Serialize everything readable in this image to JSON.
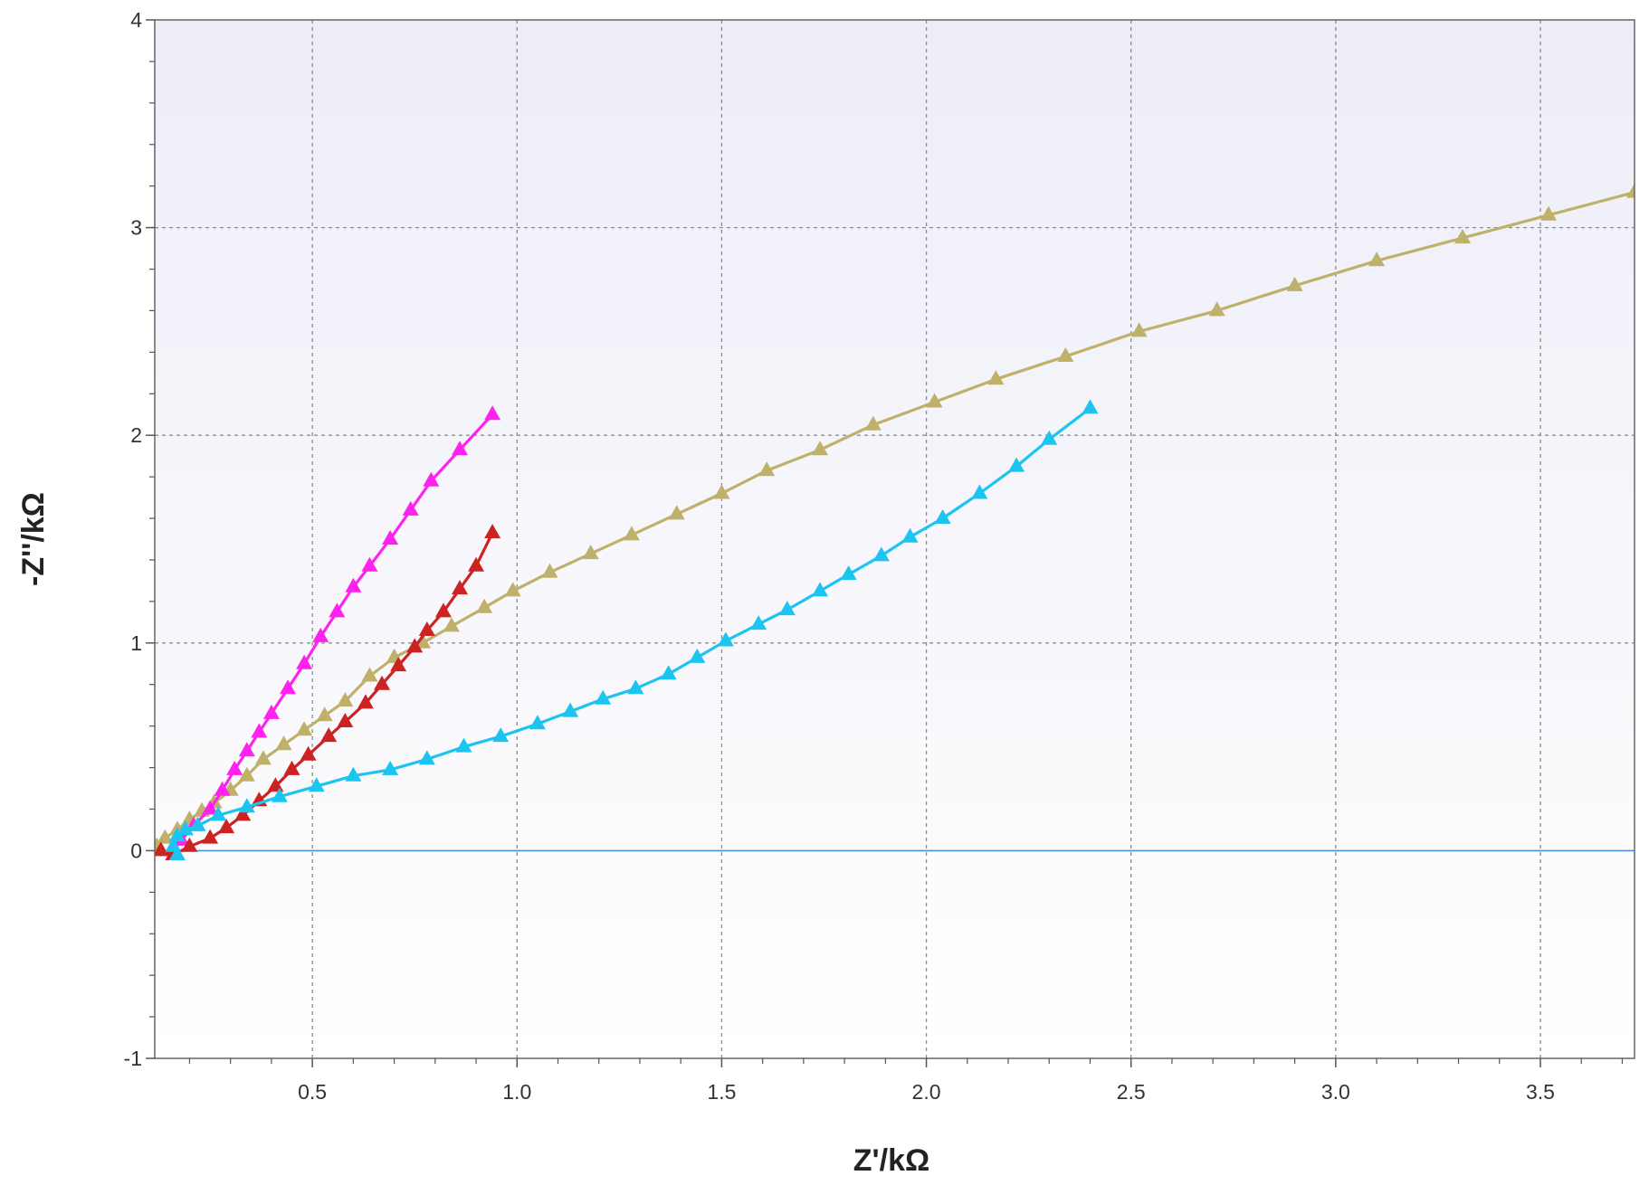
{
  "chart_data": {
    "type": "scatter",
    "title": "",
    "xlabel": "Z'/kΩ",
    "ylabel": "-Z''/kΩ",
    "xlim": [
      0.115,
      3.73
    ],
    "ylim": [
      -1,
      4
    ],
    "x_ticks": [
      "0.5",
      "1.0",
      "1.5",
      "2.0",
      "2.5",
      "3.0",
      "3.5"
    ],
    "y_ticks": [
      "-1",
      "0",
      "1",
      "2",
      "3",
      "4"
    ],
    "x_tick_values": [
      0.5,
      1.0,
      1.5,
      2.0,
      2.5,
      3.0,
      3.5
    ],
    "y_tick_values": [
      -1,
      0,
      1,
      2,
      3,
      4
    ],
    "grid": true,
    "zero_line": true,
    "marker": "triangle",
    "colors": {
      "plot_background_top": "#ededf8",
      "plot_background_bottom": "#ffffff",
      "grid": "#8c8c8c",
      "zero_line": "#4a90d9",
      "axis": "#555555"
    },
    "series": [
      {
        "color": "#bfb06a",
        "points": [
          [
            0.12,
            0.02
          ],
          [
            0.14,
            0.06
          ],
          [
            0.17,
            0.1
          ],
          [
            0.2,
            0.15
          ],
          [
            0.23,
            0.19
          ],
          [
            0.26,
            0.23
          ],
          [
            0.3,
            0.29
          ],
          [
            0.34,
            0.36
          ],
          [
            0.38,
            0.44
          ],
          [
            0.43,
            0.51
          ],
          [
            0.48,
            0.58
          ],
          [
            0.53,
            0.65
          ],
          [
            0.58,
            0.72
          ],
          [
            0.64,
            0.84
          ],
          [
            0.7,
            0.93
          ],
          [
            0.77,
            1.0
          ],
          [
            0.84,
            1.08
          ],
          [
            0.92,
            1.17
          ],
          [
            0.99,
            1.25
          ],
          [
            1.08,
            1.34
          ],
          [
            1.18,
            1.43
          ],
          [
            1.28,
            1.52
          ],
          [
            1.39,
            1.62
          ],
          [
            1.5,
            1.72
          ],
          [
            1.61,
            1.83
          ],
          [
            1.74,
            1.93
          ],
          [
            1.87,
            2.05
          ],
          [
            2.02,
            2.16
          ],
          [
            2.17,
            2.27
          ],
          [
            2.34,
            2.38
          ],
          [
            2.52,
            2.5
          ],
          [
            2.71,
            2.6
          ],
          [
            2.9,
            2.72
          ],
          [
            3.1,
            2.84
          ],
          [
            3.31,
            2.95
          ],
          [
            3.52,
            3.06
          ],
          [
            3.73,
            3.17
          ]
        ]
      },
      {
        "color": "#ff22ee",
        "points": [
          [
            0.16,
            0.0
          ],
          [
            0.18,
            0.05
          ],
          [
            0.21,
            0.12
          ],
          [
            0.25,
            0.2
          ],
          [
            0.28,
            0.29
          ],
          [
            0.31,
            0.39
          ],
          [
            0.34,
            0.48
          ],
          [
            0.37,
            0.57
          ],
          [
            0.4,
            0.66
          ],
          [
            0.44,
            0.78
          ],
          [
            0.48,
            0.9
          ],
          [
            0.52,
            1.03
          ],
          [
            0.56,
            1.15
          ],
          [
            0.6,
            1.27
          ],
          [
            0.64,
            1.37
          ],
          [
            0.69,
            1.5
          ],
          [
            0.74,
            1.64
          ],
          [
            0.79,
            1.78
          ],
          [
            0.86,
            1.93
          ],
          [
            0.94,
            2.1
          ]
        ]
      },
      {
        "color": "#cc2222",
        "points": [
          [
            0.13,
            0.0
          ],
          [
            0.16,
            -0.02
          ],
          [
            0.2,
            0.02
          ],
          [
            0.25,
            0.06
          ],
          [
            0.29,
            0.11
          ],
          [
            0.33,
            0.17
          ],
          [
            0.37,
            0.24
          ],
          [
            0.41,
            0.31
          ],
          [
            0.45,
            0.39
          ],
          [
            0.49,
            0.46
          ],
          [
            0.54,
            0.55
          ],
          [
            0.58,
            0.62
          ],
          [
            0.63,
            0.71
          ],
          [
            0.67,
            0.8
          ],
          [
            0.71,
            0.89
          ],
          [
            0.75,
            0.98
          ],
          [
            0.78,
            1.06
          ],
          [
            0.82,
            1.15
          ],
          [
            0.86,
            1.26
          ],
          [
            0.9,
            1.37
          ],
          [
            0.94,
            1.53
          ]
        ]
      },
      {
        "color": "#1cc4f0",
        "points": [
          [
            0.17,
            -0.02
          ],
          [
            0.16,
            0.02
          ],
          [
            0.17,
            0.07
          ],
          [
            0.19,
            0.1
          ],
          [
            0.22,
            0.12
          ],
          [
            0.27,
            0.17
          ],
          [
            0.34,
            0.21
          ],
          [
            0.42,
            0.26
          ],
          [
            0.51,
            0.31
          ],
          [
            0.6,
            0.36
          ],
          [
            0.69,
            0.39
          ],
          [
            0.78,
            0.44
          ],
          [
            0.87,
            0.5
          ],
          [
            0.96,
            0.55
          ],
          [
            1.05,
            0.61
          ],
          [
            1.13,
            0.67
          ],
          [
            1.21,
            0.73
          ],
          [
            1.29,
            0.78
          ],
          [
            1.37,
            0.85
          ],
          [
            1.44,
            0.93
          ],
          [
            1.51,
            1.01
          ],
          [
            1.59,
            1.09
          ],
          [
            1.66,
            1.16
          ],
          [
            1.74,
            1.25
          ],
          [
            1.81,
            1.33
          ],
          [
            1.89,
            1.42
          ],
          [
            1.96,
            1.51
          ],
          [
            2.04,
            1.6
          ],
          [
            2.13,
            1.72
          ],
          [
            2.22,
            1.85
          ],
          [
            2.3,
            1.98
          ],
          [
            2.4,
            2.13
          ]
        ]
      }
    ]
  }
}
